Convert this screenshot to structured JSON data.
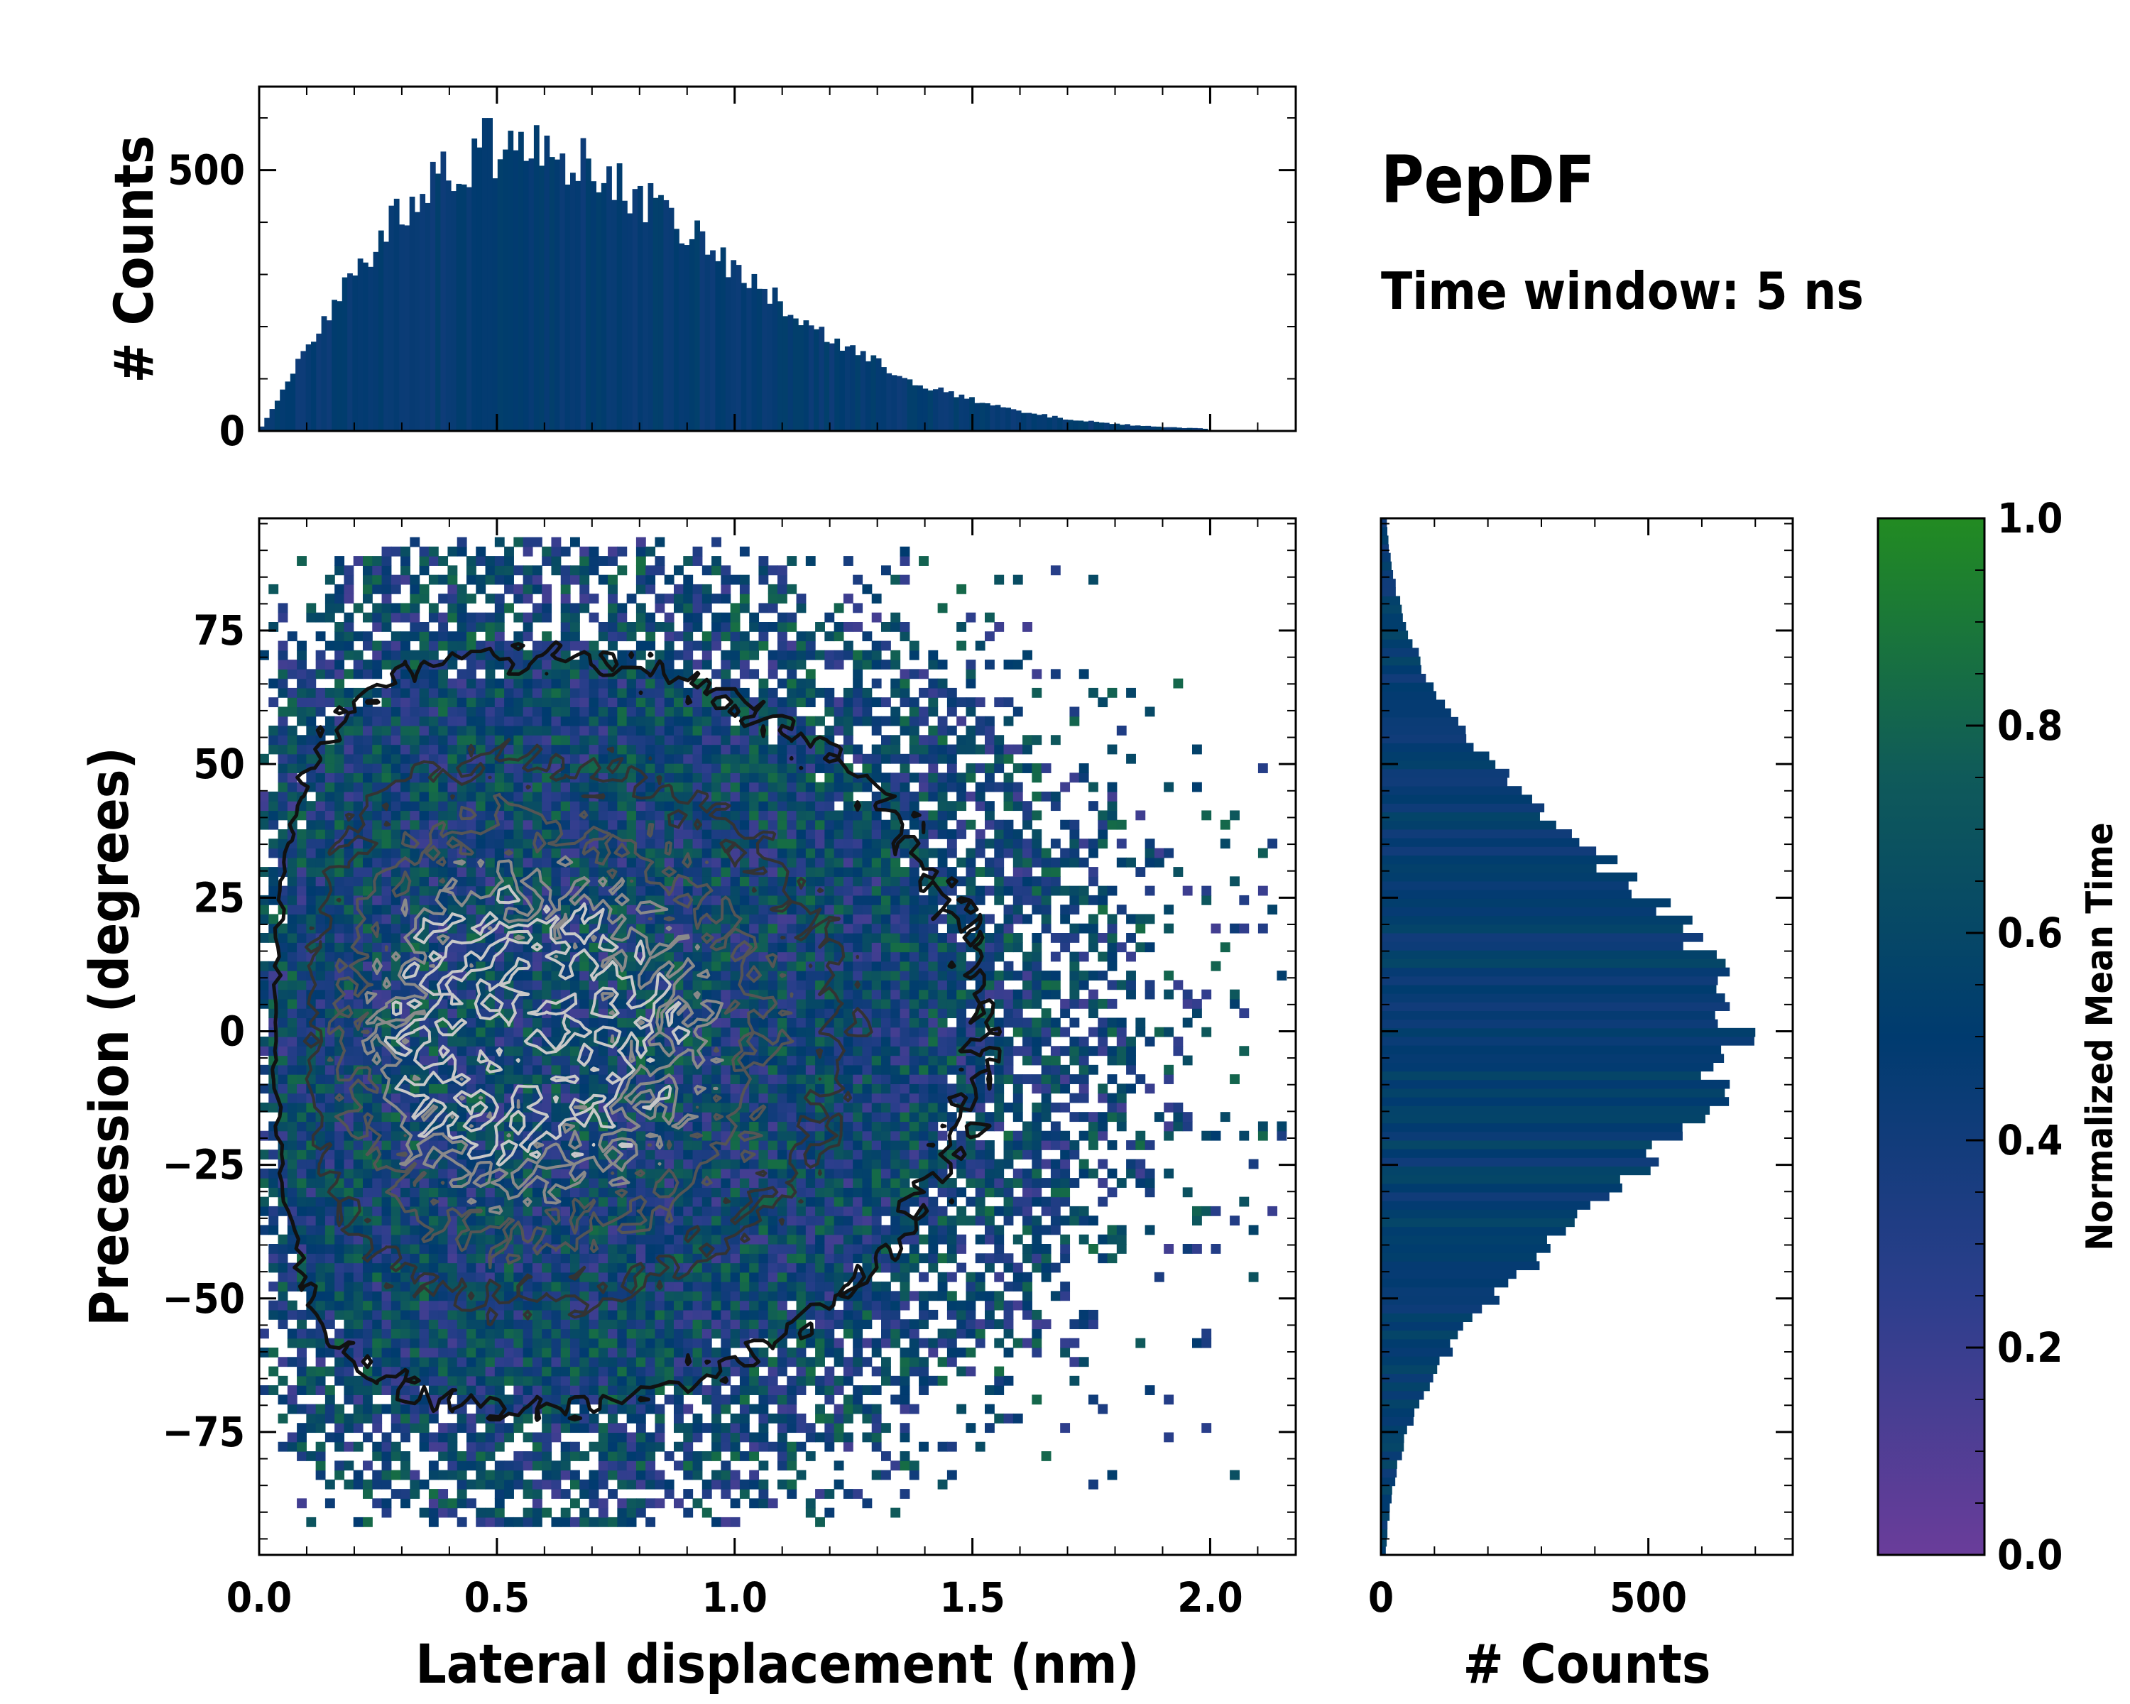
{
  "figure": {
    "title": "PepDF",
    "subtitle": "Time window: 5 ns"
  },
  "chart_data": [
    {
      "id": "main",
      "type": "heatmap",
      "xlabel": "Lateral displacement (nm)",
      "ylabel": "Precession (degrees)",
      "xlim": [
        0.0,
        2.18
      ],
      "ylim": [
        -98,
        96
      ],
      "xticks": [
        0.0,
        0.5,
        1.0,
        1.5,
        2.0
      ],
      "xtick_labels": [
        "0.0",
        "0.5",
        "1.0",
        "1.5",
        "2.0"
      ],
      "yticks": [
        -75,
        -50,
        -25,
        0,
        25,
        50,
        75
      ],
      "ytick_labels": [
        "−75",
        "−50",
        "−25",
        "0",
        "25",
        "50",
        "75"
      ],
      "density": {
        "x_mode": 0.55,
        "y_mean": 0,
        "y_sd": 33,
        "x_extent": 2.15
      },
      "contour_levels": [
        0.1,
        0.3,
        0.5,
        0.7,
        0.85
      ]
    },
    {
      "id": "top_hist",
      "type": "bar",
      "ylabel": "# Counts",
      "xlim": [
        0.0,
        2.18
      ],
      "ylim": [
        0,
        660
      ],
      "yticks": [
        0,
        500
      ],
      "ytick_labels": [
        "0",
        "500"
      ],
      "peak": {
        "x": 0.48,
        "value": 600
      },
      "bins": 200
    },
    {
      "id": "right_hist",
      "type": "bar",
      "xlabel": "# Counts",
      "xlim": [
        0,
        770
      ],
      "ylim": [
        -98,
        96
      ],
      "xticks": [
        0,
        500
      ],
      "xtick_labels": [
        "0",
        "500"
      ],
      "peak": {
        "y": 0,
        "value": 700
      },
      "bins": 120
    },
    {
      "id": "colorbar",
      "type": "colorbar",
      "label": "Normalized Mean Time",
      "range": [
        0.0,
        1.0
      ],
      "ticks": [
        0.0,
        0.2,
        0.4,
        0.6,
        0.8,
        1.0
      ],
      "tick_labels": [
        "0.0",
        "0.2",
        "0.4",
        "0.6",
        "0.8",
        "1.0"
      ],
      "colors": [
        "#6a3d9a",
        "#2c3e8c",
        "#003b6f",
        "#0f5a5a",
        "#228b22"
      ]
    }
  ]
}
